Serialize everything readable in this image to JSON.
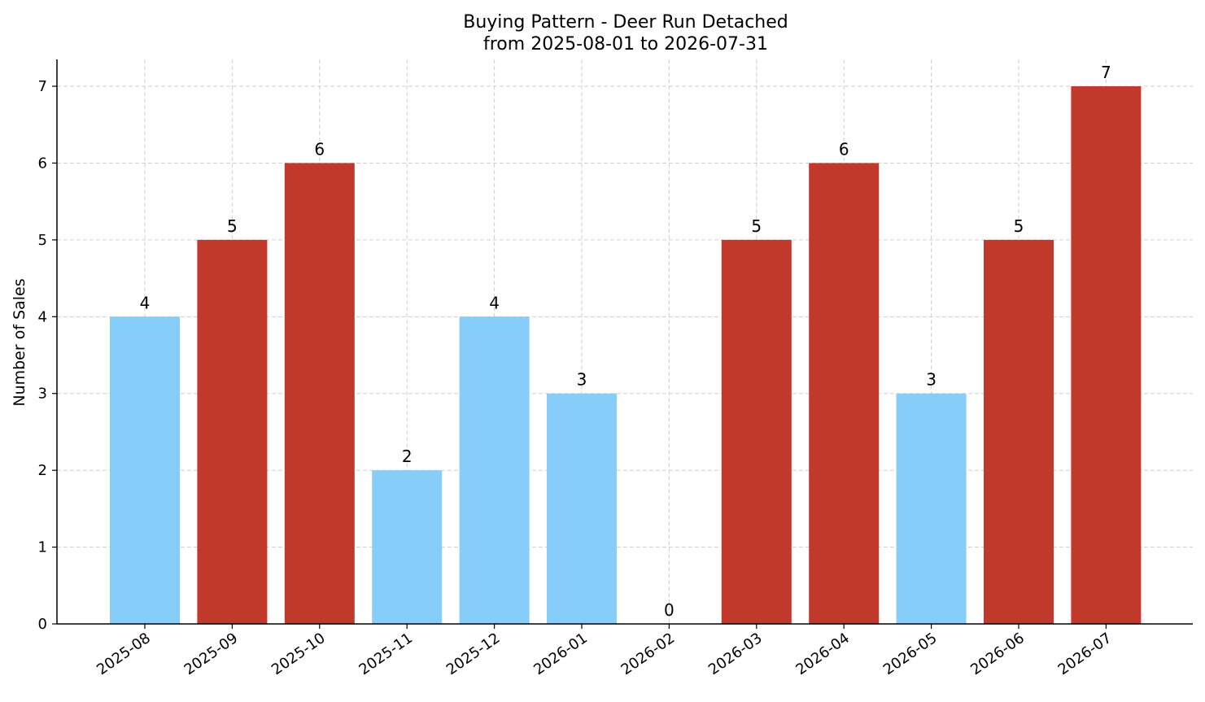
{
  "chart_data": {
    "type": "bar",
    "title_line1": "Buying Pattern - Deer Run Detached",
    "title_line2": "from 2025-08-01 to 2026-07-31",
    "ylabel": "Number of Sales",
    "xlabel": "",
    "categories": [
      "2025-08",
      "2025-09",
      "2025-10",
      "2025-11",
      "2025-12",
      "2026-01",
      "2026-02",
      "2026-03",
      "2026-04",
      "2026-05",
      "2026-06",
      "2026-07"
    ],
    "values": [
      4,
      5,
      6,
      2,
      4,
      3,
      0,
      5,
      6,
      3,
      5,
      7
    ],
    "bar_colors": [
      "#87cdf9",
      "#c0392b",
      "#c0392b",
      "#87cdf9",
      "#87cdf9",
      "#87cdf9",
      "#87cdf9",
      "#c0392b",
      "#c0392b",
      "#87cdf9",
      "#c0392b",
      "#c0392b"
    ],
    "yticks": [
      0,
      1,
      2,
      3,
      4,
      5,
      6,
      7
    ],
    "ylim": [
      0,
      7.35
    ],
    "grid": true,
    "legend": false
  }
}
